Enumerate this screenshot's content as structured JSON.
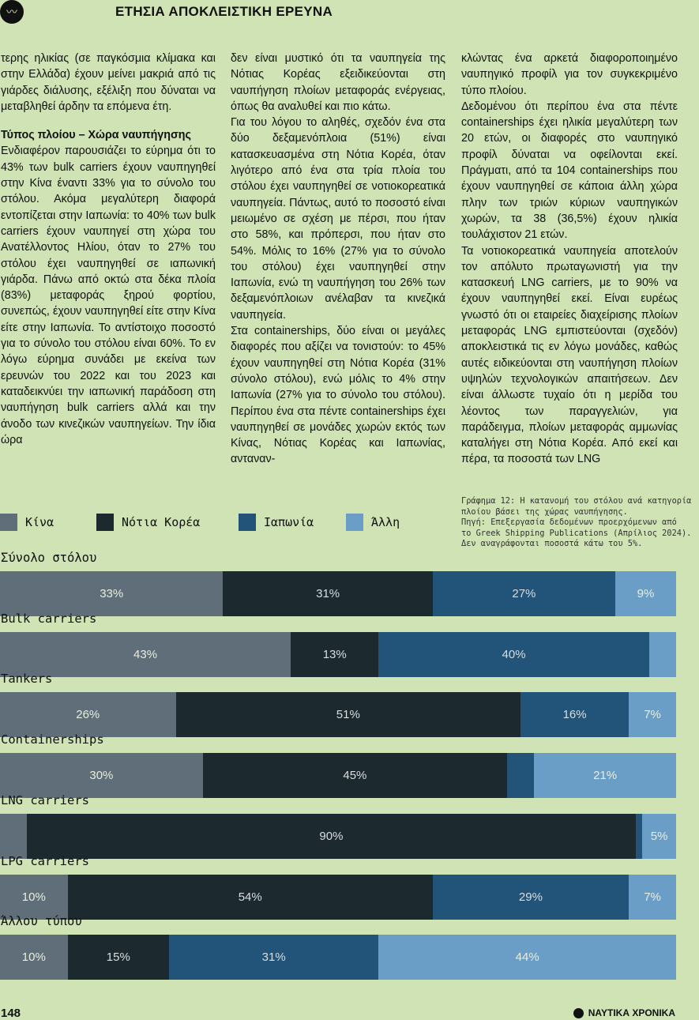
{
  "header": {
    "title": "ΕΤΗΣΙΑ ΑΠΟΚΛΕΙΣΤΙΚΗ ΕΡΕΥΝΑ",
    "logo_icon": "wave-logo-icon"
  },
  "columns": {
    "col1": [
      {
        "text": "τερης ηλικίας (σε παγκόσμια κλίμακα και στην Ελλάδα) έχουν μείνει μακριά από τις γιάρδες διάλυσης, εξέλιξη που δύναται να μεταβληθεί άρδην τα επόμενα έτη."
      },
      {
        "heading": "Τύπος πλοίου – Χώρα ναυπήγησης",
        "text": "Ενδιαφέρον παρουσιάζει το εύρημα ότι το 43% των bulk carriers έχουν ναυπηγηθεί στην Κίνα έναντι 33% για το σύνολο του στόλου. Ακόμα μεγαλύτερη διαφορά εντοπίζεται στην Ιαπωνία: το 40% των bulk carriers έχουν ναυπηγεί στη χώρα του Ανατέλλοντος Ηλίου, όταν το 27% του στόλου έχει ναυπηγηθεί σε ιαπωνική γιάρδα. Πάνω από οκτώ στα δέκα πλοία (83%) μεταφοράς ξηρού φορτίου, συνεπώς, έχουν ναυπηγηθεί είτε στην Κίνα είτε στην Ιαπωνία. Το αντίστοιχο ποσοστό για το σύνολο του στόλου είναι 60%. Το εν λόγω εύρημα συνάδει με εκείνα των ερευνών του 2022 και του 2023 και καταδεικνύει την ιαπωνική παράδοση στη ναυπήγηση bulk carriers αλλά και την άνοδο των κινεζικών ναυπηγείων. Την ίδια ώρα"
      }
    ],
    "col2": [
      {
        "text": "δεν είναι μυστικό ότι τα ναυπηγεία της Νότιας Κορέας εξειδικεύονται στη ναυπήγηση πλοίων μεταφοράς ενέργειας, όπως θα αναλυθεί και πιο κάτω."
      },
      {
        "text": "Για του λόγου το αληθές, σχεδόν ένα στα δύο δεξαμενόπλοια (51%) είναι κατασκευασμένα στη Νότια Κορέα, όταν λιγότερο από ένα στα τρία πλοία του στόλου έχει ναυπηγηθεί σε νοτιοκορεατικά ναυπηγεία. Πάντως, αυτό το ποσοστό είναι μειωμένο σε σχέση με πέρσι, που ήταν στο 58%, και πρόπερσι, που ήταν στο 54%. Μόλις το 16% (27% για το σύνολο του στόλου) έχει ναυπηγηθεί στην Ιαπωνία, ενώ τη ναυπήγηση του 26% των δεξαμενόπλοιων ανέλαβαν τα κινεζικά ναυπηγεία."
      },
      {
        "text": "Στα containerships, δύο είναι οι μεγάλες διαφορές που αξίζει να τονιστούν: το 45% έχουν ναυπηγηθεί στη Νότια Κορέα (31% σύνολο στόλου), ενώ μόλις το 4% στην Ιαπωνία (27% για το σύνολο του στόλου). Περίπου ένα στα πέντε containerships έχει ναυπηγηθεί σε μονάδες χωρών εκτός των Κίνας, Νότιας Κορέας και Ιαπωνίας, ανταναν-"
      }
    ],
    "col3": [
      {
        "text": "κλώντας ένα αρκετά διαφοροποιημένο ναυπηγικό προφίλ για τον συγκεκριμένο τύπο πλοίου."
      },
      {
        "text": "Δεδομένου ότι περίπου ένα στα πέντε containerships έχει ηλικία μεγαλύτερη των 20 ετών, οι διαφορές στο ναυπηγικό προφίλ δύναται να οφείλονται εκεί. Πράγματι, από τα 104 containerships που έχουν ναυπηγηθεί σε κάποια άλλη χώρα πλην των τριών κύριων ναυπηγικών χωρών, τα 38 (36,5%) έχουν ηλικία τουλάχιστον 21 ετών."
      },
      {
        "text": "Τα νοτιοκορεατικά ναυπηγεία αποτελούν τον απόλυτο πρωταγωνιστή για την κατασκευή LNG carriers, με το 90% να έχουν ναυπηγηθεί εκεί. Είναι ευρέως γνωστό ότι οι εταιρείες διαχείρισης πλοίων μεταφοράς LNG εμπιστεύονται (σχεδόν) αποκλειστικά τις εν λόγω μονάδες, καθώς αυτές ειδικεύονται στη ναυπήγηση πλοίων υψηλών τεχνολογικών απαιτήσεων. Δεν είναι άλλωστε τυχαίο ότι η μερίδα του λέοντος των παραγγελιών, για παράδειγμα, πλοίων μεταφοράς αμμωνίας καταλήγει στη Νότια Κορέα. Από εκεί και πέρα, τα ποσοστά των LNG"
      }
    ]
  },
  "caption_lines": [
    "Γράφημα 12: Η κατανομή του στόλου ανά κατηγορία",
    "πλοίου βάσει της χώρας ναυπήγησης.",
    "Πηγή: Επεξεργασία δεδομένων προερχόμενων από",
    "το Greek Shipping Publications (Απρίλιος 2024).",
    "Δεν αναγράφονται ποσοστά κάτω του 5%."
  ],
  "chart_data": {
    "type": "bar",
    "orientation": "horizontal-stacked-100",
    "series": [
      {
        "name": "Κίνα",
        "color": "#5f6e78"
      },
      {
        "name": "Νότια Κορέα",
        "color": "#1c2a30"
      },
      {
        "name": "Ιαπωνία",
        "color": "#215478"
      },
      {
        "name": "Άλλη",
        "color": "#6b9ec7"
      }
    ],
    "categories": [
      {
        "label": "Σύνολο στόλου",
        "values": [
          33,
          31,
          27,
          9
        ],
        "labels": [
          "33%",
          "31%",
          "27%",
          "9%"
        ]
      },
      {
        "label": "Bulk carriers",
        "values": [
          43,
          13,
          40,
          4
        ],
        "labels": [
          "43%",
          "13%",
          "40%",
          ""
        ]
      },
      {
        "label": "Tankers",
        "values": [
          26,
          51,
          16,
          7
        ],
        "labels": [
          "26%",
          "51%",
          "16%",
          "7%"
        ]
      },
      {
        "label": "Containerships",
        "values": [
          30,
          45,
          4,
          21
        ],
        "labels": [
          "30%",
          "45%",
          "",
          "21%"
        ]
      },
      {
        "label": "LNG carriers",
        "values": [
          4,
          90,
          1,
          5
        ],
        "labels": [
          "",
          "90%",
          "",
          "5%"
        ]
      },
      {
        "label": "LPG carriers",
        "values": [
          10,
          54,
          29,
          7
        ],
        "labels": [
          "10%",
          "54%",
          "29%",
          "7%"
        ]
      },
      {
        "label": "Άλλου τύπου",
        "values": [
          10,
          15,
          31,
          44
        ],
        "labels": [
          "10%",
          "15%",
          "31%",
          "44%"
        ]
      }
    ]
  },
  "footer": {
    "page_number": "148",
    "brand": "ΝΑΥΤΙΚΑ ΧΡΟΝΙΚΑ"
  }
}
